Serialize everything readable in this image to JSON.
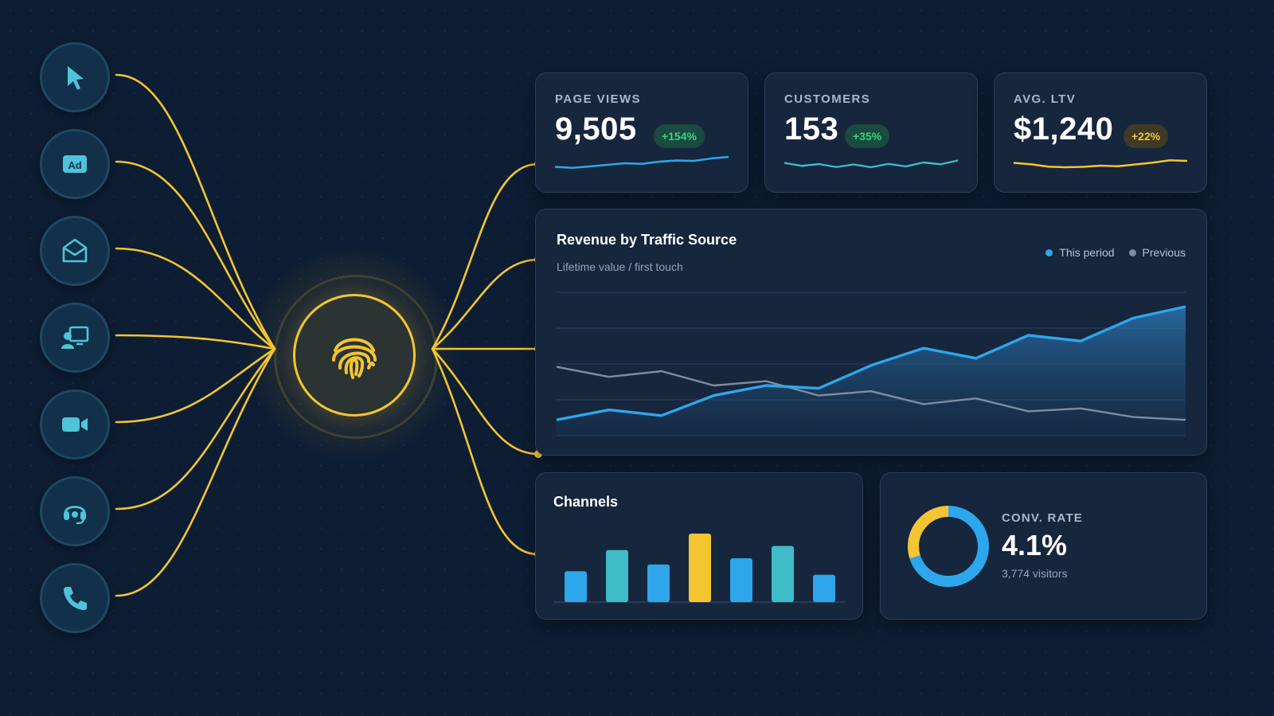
{
  "colors": {
    "accent_yellow": "#f4c531",
    "series_blue": "#2ea6ec",
    "series_teal": "#3fbcc8",
    "series_gray": "#7f8ca0",
    "positive_green": "#39d37b"
  },
  "sources": [
    {
      "icon": "cursor-icon"
    },
    {
      "icon": "ad-icon"
    },
    {
      "icon": "envelope-icon"
    },
    {
      "icon": "presentation-icon"
    },
    {
      "icon": "video-camera-icon"
    },
    {
      "icon": "headset-icon"
    },
    {
      "icon": "phone-icon"
    }
  ],
  "hub": {
    "icon": "fingerprint-icon"
  },
  "kpis": [
    {
      "label": "PAGE VIEWS",
      "value": "9,505",
      "change": "+154%",
      "trend": [
        5,
        4.5,
        5.2,
        6,
        6.8,
        6.5,
        7.6,
        8.2,
        8.0,
        9.2,
        10
      ]
    },
    {
      "label": "CUSTOMERS",
      "value": "153",
      "change": "+35%",
      "trend": [
        7,
        5.5,
        6.4,
        4.9,
        6.2,
        4.8,
        6.5,
        5.2,
        7.2,
        6.3,
        8.2
      ]
    },
    {
      "label": "AVG. LTV",
      "value": "$1,240",
      "change": "+22%",
      "trend": [
        7,
        6.3,
        5.1,
        4.8,
        5.0,
        5.6,
        5.3,
        6.2,
        7.1,
        8.3,
        8.0
      ]
    }
  ],
  "revenue": {
    "title": "Revenue by Traffic Source",
    "subtitle": "Lifetime value / first touch",
    "legend": [
      "This period",
      "Previous"
    ]
  },
  "channels": {
    "title": "Channels"
  },
  "conversion": {
    "label": "CONV. RATE",
    "value": "4.1%",
    "visitors": "3,774 visitors",
    "fraction": 0.7
  },
  "chart_data": [
    {
      "type": "area",
      "title": "Revenue by Traffic Source",
      "x": [
        1,
        2,
        3,
        4,
        5,
        6,
        7,
        8,
        9,
        10,
        11,
        12,
        13
      ],
      "ylim": [
        0,
        10
      ],
      "grid": true,
      "legend_position": "top-right",
      "series": [
        {
          "name": "This period",
          "values": [
            1.1,
            1.8,
            1.4,
            2.8,
            3.5,
            3.3,
            4.9,
            6.1,
            5.4,
            7.0,
            6.6,
            8.2,
            9.0
          ]
        },
        {
          "name": "Previous",
          "values": [
            4.8,
            4.1,
            4.5,
            3.5,
            3.8,
            2.8,
            3.1,
            2.2,
            2.6,
            1.7,
            1.9,
            1.3,
            1.1
          ]
        }
      ]
    },
    {
      "type": "bar",
      "title": "Channels",
      "categories": [
        "1",
        "2",
        "3",
        "4",
        "5",
        "6",
        "7"
      ],
      "ylim": [
        0,
        10
      ],
      "values": [
        4.5,
        7.6,
        5.5,
        10,
        6.4,
        8.2,
        4.0
      ],
      "colors": [
        "#2ea6ec",
        "#3fbcc8",
        "#2ea6ec",
        "#f4c531",
        "#2ea6ec",
        "#3fbcc8",
        "#2ea6ec"
      ]
    },
    {
      "type": "pie",
      "title": "CONV. RATE",
      "values": [
        70,
        30
      ],
      "colors": [
        "#2ea6ec",
        "#f4c531"
      ]
    }
  ]
}
